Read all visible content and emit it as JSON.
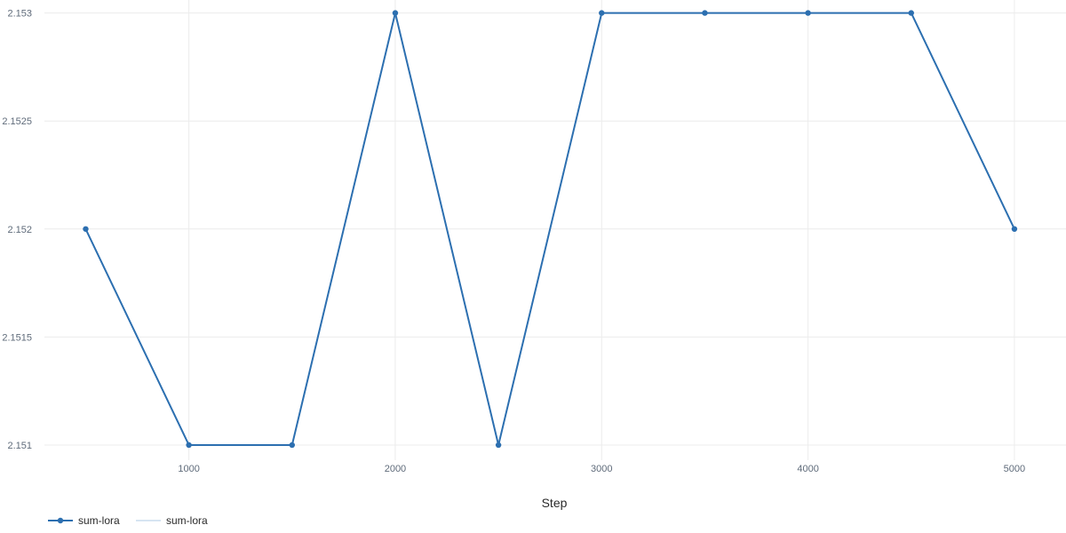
{
  "chart_data": {
    "type": "line",
    "xlabel": "Step",
    "ylabel": "",
    "x": [
      500,
      1000,
      1500,
      2000,
      2500,
      3000,
      3500,
      4000,
      4500,
      5000
    ],
    "xlim": [
      300,
      5250
    ],
    "ylim": [
      2.15093,
      2.15306
    ],
    "x_ticks": [
      1000,
      2000,
      3000,
      4000,
      5000
    ],
    "x_tick_labels": [
      "1000",
      "2000",
      "3000",
      "4000",
      "5000"
    ],
    "y_ticks": [
      2.151,
      2.1515,
      2.152,
      2.1525,
      2.153
    ],
    "y_tick_labels": [
      "2.151",
      "2.1515",
      "2.152",
      "2.1525",
      "2.153"
    ],
    "grid": true,
    "legend_position": "bottom-left",
    "series": [
      {
        "name": "sum-lora",
        "color": "#2c6fb0",
        "markers": true,
        "values": [
          2.152,
          2.151,
          2.151,
          2.153,
          2.151,
          2.153,
          2.153,
          2.153,
          2.153,
          2.152
        ]
      }
    ],
    "legend": [
      {
        "label": "sum-lora",
        "style": "line-marker",
        "color": "#2c6fb0"
      },
      {
        "label": "sum-lora",
        "style": "line",
        "color": "#d6e4f2"
      }
    ]
  }
}
